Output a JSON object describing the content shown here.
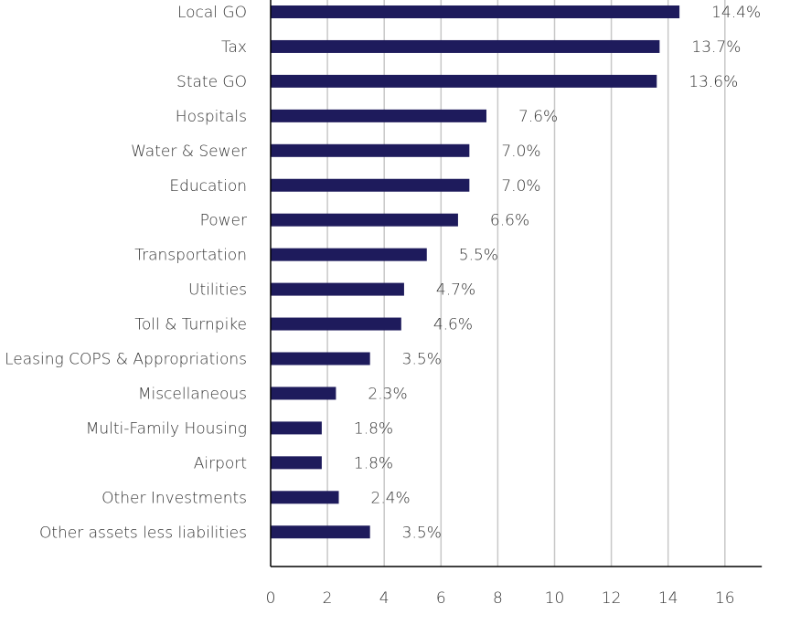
{
  "chart_data": {
    "type": "bar",
    "orientation": "horizontal",
    "categories": [
      "Local GO",
      "Tax",
      "State GO",
      "Hospitals",
      "Water & Sewer",
      "Education",
      "Power",
      "Transportation",
      "Utilities",
      "Toll & Turnpike",
      "Leasing COPS & Appropriations",
      "Miscellaneous",
      "Multi-Family Housing",
      "Airport",
      "Other Investments",
      "Other assets less liabilities"
    ],
    "values": [
      14.4,
      13.7,
      13.6,
      7.6,
      7.0,
      7.0,
      6.6,
      5.5,
      4.7,
      4.6,
      3.5,
      2.3,
      1.8,
      1.8,
      2.4,
      3.5
    ],
    "value_labels": [
      "14.4%",
      "13.7%",
      "13.6%",
      "7.6%",
      "7.0%",
      "7.0%",
      "6.6%",
      "5.5%",
      "4.7%",
      "4.6%",
      "3.5%",
      "2.3%",
      "1.8%",
      "1.8%",
      "2.4%",
      "3.5%"
    ],
    "xlim": [
      0,
      17.3
    ],
    "xticks": [
      0,
      2,
      4,
      6,
      8,
      10,
      12,
      14,
      16
    ],
    "grid": true,
    "bar_color": "#1e1b5c",
    "grid_color": "#c8c8c8",
    "axis_color": "#000000",
    "title": "",
    "xlabel": "",
    "ylabel": ""
  }
}
